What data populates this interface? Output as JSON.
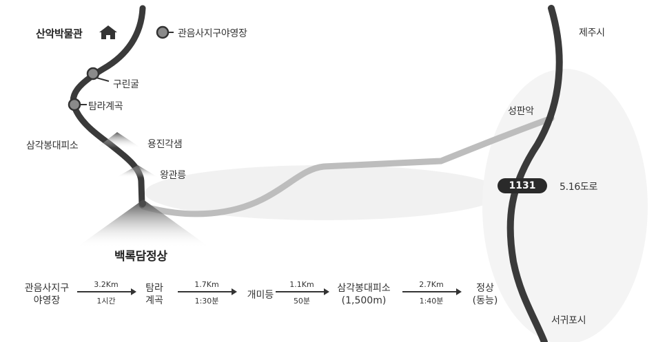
{
  "places": {
    "museum": "산악박물관",
    "camp": "관음사지구야영장",
    "jeju_city": "제주시",
    "gurin_cave": "구린굴",
    "tamra_valley": "탐라계곡",
    "seongpanak": "성판악",
    "samgak": "삼각봉대피소",
    "yongjin": "용진각샘",
    "wanggwan": "왕관릉",
    "summit": "백록담정상",
    "road_516": "5.16도로",
    "seogwipo": "서귀포시"
  },
  "road_badge": "1131",
  "icons": [
    "house-icon",
    "pin-icon",
    "mountain-icon"
  ],
  "colors": {
    "road": "#3a3a3a",
    "trail": "#b8b8b8",
    "pin": "#8a8a8a",
    "mountain": "#6a6a6a"
  },
  "route": {
    "steps": [
      {
        "line1": "관음사지구",
        "line2": "야영장"
      },
      {
        "line1": "탐라",
        "line2": "계곡"
      },
      {
        "line1": "개미등",
        "line2": ""
      },
      {
        "line1": "삼각봉대피소",
        "line2": "(1,500m)"
      },
      {
        "line1": "정상",
        "line2": "(동능)"
      }
    ],
    "legs": [
      {
        "distance": "3.2Km",
        "time": "1시간"
      },
      {
        "distance": "1.7Km",
        "time": "1:30분"
      },
      {
        "distance": "1.1Km",
        "time": "50분"
      },
      {
        "distance": "2.7Km",
        "time": "1:40분"
      }
    ]
  }
}
